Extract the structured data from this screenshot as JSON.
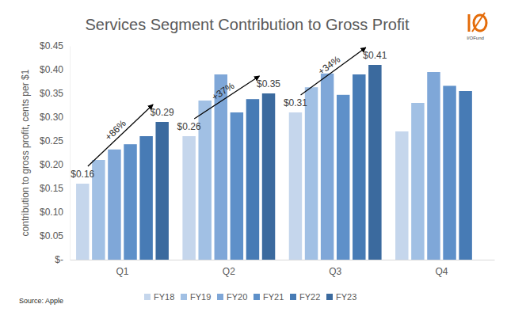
{
  "chart_data": {
    "type": "bar",
    "title": "Services Segment Contribution to Gross Profit",
    "y_label": "contribution to gross profit, cents per $1",
    "source": "Source: Apple",
    "logo_text": "I/OFund",
    "categories": [
      "Q1",
      "Q2",
      "Q3",
      "Q4"
    ],
    "series": [
      {
        "name": "FY18",
        "color": "#c5d6ec",
        "values": [
          0.16,
          0.26,
          0.31,
          0.27
        ],
        "value_labels": [
          "$0.16",
          "$0.26",
          "$0.31",
          null
        ]
      },
      {
        "name": "FY19",
        "color": "#a1c0e4",
        "values": [
          0.21,
          0.335,
          0.363,
          0.33
        ]
      },
      {
        "name": "FY20",
        "color": "#7fa7d8",
        "values": [
          0.232,
          0.39,
          0.392,
          0.395
        ]
      },
      {
        "name": "FY21",
        "color": "#5e90c9",
        "values": [
          0.243,
          0.31,
          0.347,
          0.366
        ]
      },
      {
        "name": "FY22",
        "color": "#477bb5",
        "values": [
          0.26,
          0.338,
          0.39,
          0.355
        ]
      },
      {
        "name": "FY23",
        "color": "#3b6a9e",
        "values": [
          0.29,
          0.35,
          0.41,
          null
        ],
        "value_labels": [
          "$0.29",
          "$0.35",
          "$0.41",
          null
        ]
      }
    ],
    "annotations": [
      {
        "text": "+86%",
        "category": "Q1",
        "from": "FY18",
        "to": "FY23"
      },
      {
        "text": "+37%",
        "category": "Q2",
        "from": "FY18",
        "to": "FY23"
      },
      {
        "text": "+34%",
        "category": "Q3",
        "from": "FY18",
        "to": "FY23"
      }
    ],
    "ylim": [
      0,
      0.45
    ],
    "yticks": [
      {
        "value": 0,
        "label": "$-"
      },
      {
        "value": 0.05,
        "label": "$0.05"
      },
      {
        "value": 0.1,
        "label": "$0.10"
      },
      {
        "value": 0.15,
        "label": "$0.15"
      },
      {
        "value": 0.2,
        "label": "$0.20"
      },
      {
        "value": 0.25,
        "label": "$0.25"
      },
      {
        "value": 0.3,
        "label": "$0.30"
      },
      {
        "value": 0.35,
        "label": "$0.35"
      },
      {
        "value": 0.4,
        "label": "$0.40"
      },
      {
        "value": 0.45,
        "label": "$0.45"
      }
    ],
    "grid": false,
    "legend": "bottom",
    "data_labels": true
  }
}
